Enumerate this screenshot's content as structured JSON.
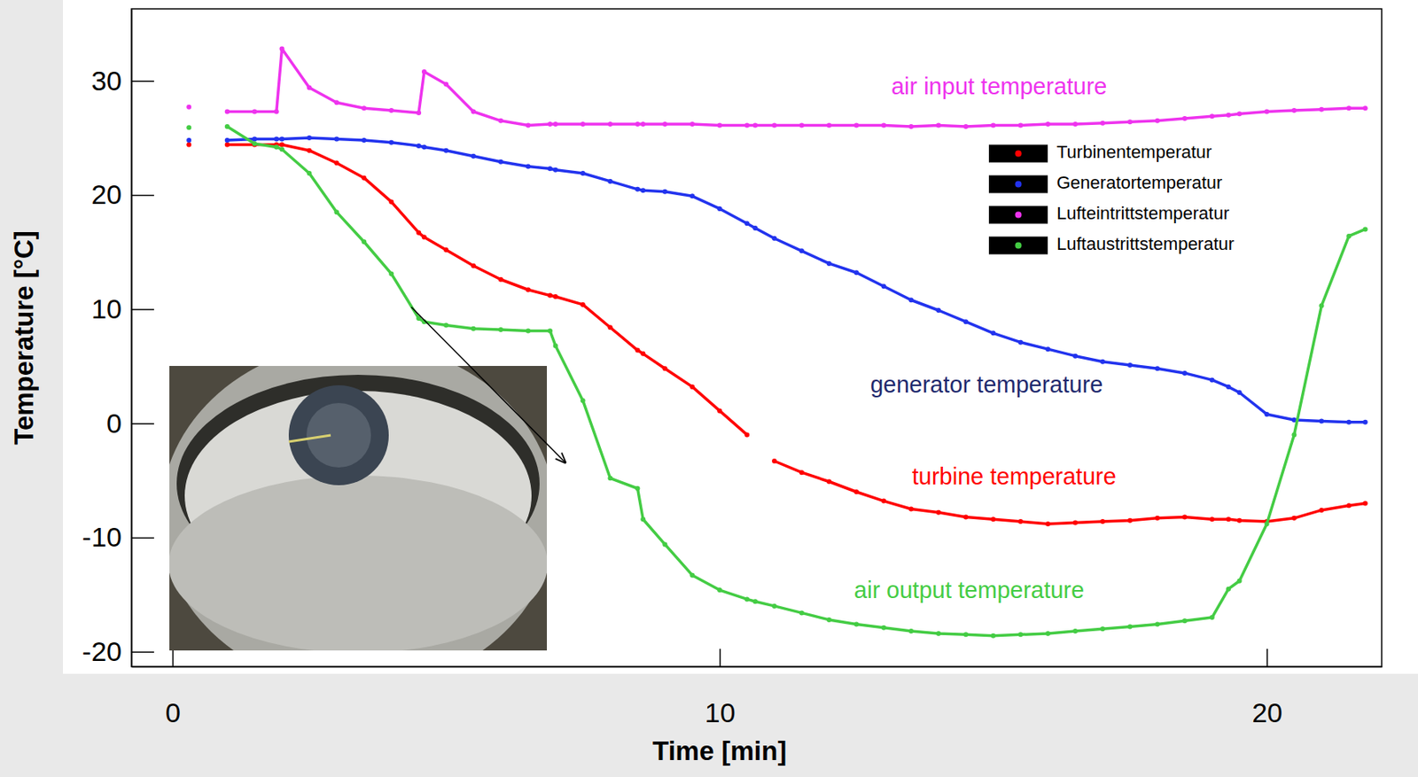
{
  "chart_data": {
    "type": "line",
    "x_label": "Time [min]",
    "y_label": "Temperature [°C]",
    "marker": "circle",
    "legend": "upper right",
    "x": [
      0.3,
      0.65,
      1.0,
      1.5,
      1.9,
      2.0,
      2.5,
      3.0,
      3.5,
      4.0,
      4.5,
      4.6,
      5.0,
      5.5,
      6.0,
      6.5,
      6.9,
      7.0,
      7.5,
      8.0,
      8.5,
      8.6,
      9.0,
      9.5,
      10.0,
      10.5,
      10.65,
      11.0,
      11.5,
      12.0,
      12.5,
      13.0,
      13.5,
      14.0,
      14.5,
      15.0,
      15.5,
      16.0,
      16.5,
      17.0,
      17.5,
      18.0,
      18.5,
      19.0,
      19.3,
      19.5,
      20.0,
      20.5,
      21.0,
      21.5,
      21.8
    ],
    "xlim": [
      -0.75,
      22.1
    ],
    "xticks": [
      0,
      10,
      20
    ],
    "ylim": [
      -21.3,
      36.3
    ],
    "yticks": [
      -20,
      -10,
      0,
      10,
      20,
      30
    ],
    "series": [
      {
        "name": "Turbinentemperatur",
        "label": "turbine temperature",
        "color": "#ff0000",
        "values": [
          24.4,
          null,
          24.4,
          24.4,
          24.4,
          24.4,
          23.9,
          22.8,
          21.5,
          19.4,
          16.7,
          16.3,
          15.2,
          13.8,
          12.6,
          11.7,
          11.2,
          11.1,
          10.4,
          8.4,
          6.4,
          6.1,
          4.8,
          3.2,
          1.1,
          -1.0,
          null,
          -3.3,
          -4.3,
          -5.1,
          -6.0,
          -6.8,
          -7.5,
          -7.8,
          -8.2,
          -8.4,
          -8.6,
          -8.8,
          -8.7,
          -8.6,
          -8.5,
          -8.3,
          -8.2,
          -8.4,
          -8.4,
          -8.5,
          -8.6,
          -8.3,
          -7.6,
          -7.2,
          -7.0
        ]
      },
      {
        "name": "Generatortemperatur",
        "label": "generator temperature",
        "color": "#2233ee",
        "values": [
          24.8,
          null,
          24.8,
          24.9,
          24.9,
          24.9,
          25.0,
          24.9,
          24.8,
          24.6,
          24.3,
          24.2,
          23.9,
          23.4,
          22.9,
          22.5,
          22.3,
          22.2,
          21.9,
          21.2,
          20.5,
          20.4,
          20.3,
          19.9,
          18.8,
          17.5,
          17.1,
          16.2,
          15.1,
          14.0,
          13.2,
          12.0,
          10.8,
          9.9,
          8.9,
          7.9,
          7.1,
          6.5,
          5.9,
          5.4,
          5.1,
          4.8,
          4.4,
          3.8,
          3.2,
          2.7,
          0.8,
          0.3,
          0.2,
          0.1,
          0.1
        ]
      },
      {
        "name": "Lufteintrittstemperatur",
        "label": "air input temperature",
        "color": "#ee33ee",
        "values": [
          27.7,
          null,
          27.3,
          27.3,
          27.3,
          32.8,
          29.4,
          28.1,
          27.6,
          27.4,
          27.2,
          30.8,
          29.7,
          27.3,
          26.5,
          26.1,
          26.2,
          26.2,
          26.2,
          26.2,
          26.2,
          26.2,
          26.2,
          26.2,
          26.1,
          26.1,
          26.1,
          26.1,
          26.1,
          26.1,
          26.1,
          26.1,
          26.0,
          26.1,
          26.0,
          26.1,
          26.1,
          26.2,
          26.2,
          26.3,
          26.4,
          26.5,
          26.7,
          26.9,
          27.0,
          27.1,
          27.3,
          27.4,
          27.5,
          27.6,
          27.6
        ]
      },
      {
        "name": "Luftaustrittstemperatur",
        "label": "air output temperature",
        "color": "#44cc44",
        "values": [
          25.9,
          null,
          26.0,
          24.5,
          24.2,
          24.0,
          21.9,
          18.5,
          15.9,
          13.1,
          9.2,
          8.9,
          8.6,
          8.3,
          8.2,
          8.1,
          8.1,
          6.8,
          2.0,
          -4.8,
          -5.7,
          -8.4,
          -10.6,
          -13.3,
          -14.6,
          -15.4,
          -15.6,
          -16.0,
          -16.6,
          -17.2,
          -17.6,
          -17.9,
          -18.2,
          -18.4,
          -18.5,
          -18.6,
          -18.5,
          -18.4,
          -18.2,
          -18.0,
          -17.8,
          -17.6,
          -17.3,
          -17.0,
          -14.5,
          -13.8,
          -8.8,
          -1.0,
          10.3,
          16.4,
          17.0
        ]
      }
    ]
  }
}
